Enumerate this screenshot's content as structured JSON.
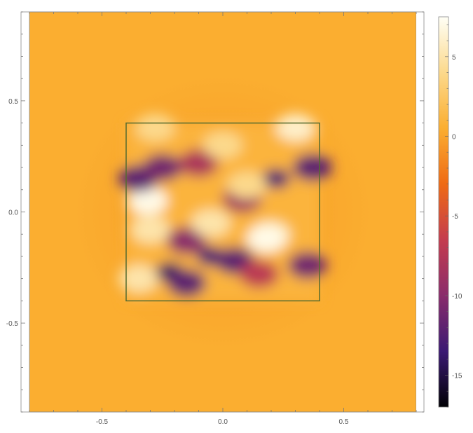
{
  "chart_data": {
    "type": "heatmap",
    "title": "",
    "xlabel": "",
    "ylabel": "",
    "xlim": [
      -0.8,
      0.8
    ],
    "ylim": [
      -0.9,
      0.9
    ],
    "x_ticks": [
      {
        "value": -0.5,
        "label": "-0.5"
      },
      {
        "value": 0.0,
        "label": "0.0"
      },
      {
        "value": 0.5,
        "label": "0.5"
      }
    ],
    "y_ticks": [
      {
        "value": 0.5,
        "label": "0.5"
      },
      {
        "value": 0.0,
        "label": "0.0"
      },
      {
        "value": -0.5,
        "label": "-0.5"
      }
    ],
    "colorbar": {
      "range": [
        -17,
        7.5
      ],
      "ticks": [
        {
          "value": 5,
          "label": "5"
        },
        {
          "value": 0,
          "label": "0"
        },
        {
          "value": -5,
          "label": "-5"
        },
        {
          "value": -10,
          "label": "-10"
        },
        {
          "value": -15,
          "label": "-15"
        }
      ],
      "gradient": [
        "#000004",
        "#3b1a73",
        "#8a2c6b",
        "#c43c4e",
        "#ef6a14",
        "#fbae30",
        "#fcd98c",
        "#fffff6"
      ]
    },
    "background_value": 0,
    "background_color": "#fbae30",
    "square_outline": {
      "x": [
        -0.4,
        0.4
      ],
      "y": [
        -0.4,
        0.4
      ],
      "color": "#556b2f"
    },
    "regions": [
      {
        "x": -0.33,
        "y": 0.05,
        "value": -16
      },
      {
        "x": -0.31,
        "y": 0.05,
        "value": 7
      },
      {
        "x": -0.35,
        "y": 0.15,
        "value": -12
      },
      {
        "x": -0.25,
        "y": 0.2,
        "value": -11
      },
      {
        "x": -0.1,
        "y": 0.22,
        "value": -8
      },
      {
        "x": -0.22,
        "y": -0.27,
        "value": -14
      },
      {
        "x": -0.15,
        "y": -0.32,
        "value": -12
      },
      {
        "x": -0.05,
        "y": -0.2,
        "value": -13
      },
      {
        "x": 0.05,
        "y": -0.22,
        "value": -12
      },
      {
        "x": -0.15,
        "y": -0.13,
        "value": -10
      },
      {
        "x": 0.22,
        "y": 0.15,
        "value": -13
      },
      {
        "x": 0.37,
        "y": 0.2,
        "value": -12
      },
      {
        "x": 0.08,
        "y": 0.06,
        "value": -9
      },
      {
        "x": 0.35,
        "y": -0.24,
        "value": -11
      },
      {
        "x": 0.15,
        "y": -0.28,
        "value": -7
      },
      {
        "x": 0.2,
        "y": -0.1,
        "value": 5
      },
      {
        "x": 0.18,
        "y": -0.12,
        "value": 7
      },
      {
        "x": 0.3,
        "y": 0.38,
        "value": 6
      },
      {
        "x": -0.05,
        "y": -0.05,
        "value": 5
      },
      {
        "x": 0.1,
        "y": 0.12,
        "value": 4
      },
      {
        "x": -0.3,
        "y": -0.08,
        "value": 5
      },
      {
        "x": -0.35,
        "y": -0.3,
        "value": 5
      },
      {
        "x": 0.0,
        "y": 0.3,
        "value": 4
      },
      {
        "x": -0.28,
        "y": 0.38,
        "value": 4
      }
    ]
  }
}
